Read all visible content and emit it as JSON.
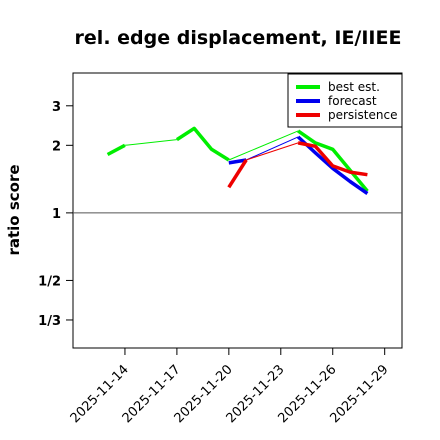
{
  "chart_data": {
    "type": "line",
    "title": "rel. edge displacement, IE/IIEE",
    "ylabel": "ratio score",
    "xlabel": "",
    "scale": "log",
    "xlim": [
      "2025-11-11",
      "2025-11-30"
    ],
    "ylim": [
      0.25,
      4.2
    ],
    "reference_line": 1,
    "yticks": [
      {
        "value": 3,
        "label": "3"
      },
      {
        "value": 2,
        "label": "2"
      },
      {
        "value": 1,
        "label": "1"
      },
      {
        "value": 0.5,
        "label": "1/2"
      },
      {
        "value": 0.3333,
        "label": "1/3"
      }
    ],
    "xticks": [
      {
        "date": "2025-11-14",
        "label": "2025-11-14",
        "color": "#000000"
      },
      {
        "date": "2025-11-17",
        "label": "2025-11-17",
        "color": "#000000"
      },
      {
        "date": "2025-11-20",
        "label": "2025-11-20",
        "color": "#228B22"
      },
      {
        "date": "2025-11-23",
        "label": "2025-11-23",
        "color": "#000000"
      },
      {
        "date": "2025-11-26",
        "label": "2025-11-26",
        "color": "#000000"
      },
      {
        "date": "2025-11-29",
        "label": "2025-11-29",
        "color": "#000000"
      }
    ],
    "legend": {
      "position": "top-right",
      "entries": [
        {
          "name": "best est.",
          "color": "#00ee00"
        },
        {
          "name": "forecast",
          "color": "#0000ee"
        },
        {
          "name": "persistence",
          "color": "#ee0000"
        }
      ]
    },
    "series": [
      {
        "name": "best est.",
        "color": "#00ee00",
        "segments": [
          {
            "x": [
              "2025-11-13",
              "2025-11-14"
            ],
            "y": [
              1.82,
              2.0
            ],
            "width": "thick"
          },
          {
            "x": [
              "2025-11-14",
              "2025-11-17"
            ],
            "y": [
              2.0,
              2.12
            ],
            "width": "thin"
          },
          {
            "x": [
              "2025-11-17",
              "2025-11-18",
              "2025-11-19",
              "2025-11-20"
            ],
            "y": [
              2.12,
              2.38,
              1.92,
              1.72
            ],
            "width": "thick"
          },
          {
            "x": [
              "2025-11-20",
              "2025-11-24"
            ],
            "y": [
              1.72,
              2.32
            ],
            "width": "thin"
          },
          {
            "x": [
              "2025-11-24",
              "2025-11-25",
              "2025-11-26",
              "2025-11-27",
              "2025-11-28"
            ],
            "y": [
              2.32,
              2.05,
              1.92,
              1.55,
              1.25
            ],
            "width": "thick"
          }
        ]
      },
      {
        "name": "forecast",
        "color": "#0000ee",
        "segments": [
          {
            "x": [
              "2025-11-20",
              "2025-11-21"
            ],
            "y": [
              1.67,
              1.72
            ],
            "width": "thick"
          },
          {
            "x": [
              "2025-11-21",
              "2025-11-24"
            ],
            "y": [
              1.72,
              2.18
            ],
            "width": "thin"
          },
          {
            "x": [
              "2025-11-24",
              "2025-11-25",
              "2025-11-26",
              "2025-11-27",
              "2025-11-28"
            ],
            "y": [
              2.18,
              1.85,
              1.58,
              1.38,
              1.22
            ],
            "width": "thick"
          }
        ]
      },
      {
        "name": "persistence",
        "color": "#ee0000",
        "segments": [
          {
            "x": [
              "2025-11-20",
              "2025-11-21"
            ],
            "y": [
              1.3,
              1.72
            ],
            "width": "thick"
          },
          {
            "x": [
              "2025-11-21",
              "2025-11-24"
            ],
            "y": [
              1.72,
              2.05
            ],
            "width": "thin"
          },
          {
            "x": [
              "2025-11-24",
              "2025-11-25",
              "2025-11-26",
              "2025-11-27",
              "2025-11-28"
            ],
            "y": [
              2.05,
              1.98,
              1.62,
              1.52,
              1.48
            ],
            "width": "thick"
          }
        ]
      }
    ]
  }
}
